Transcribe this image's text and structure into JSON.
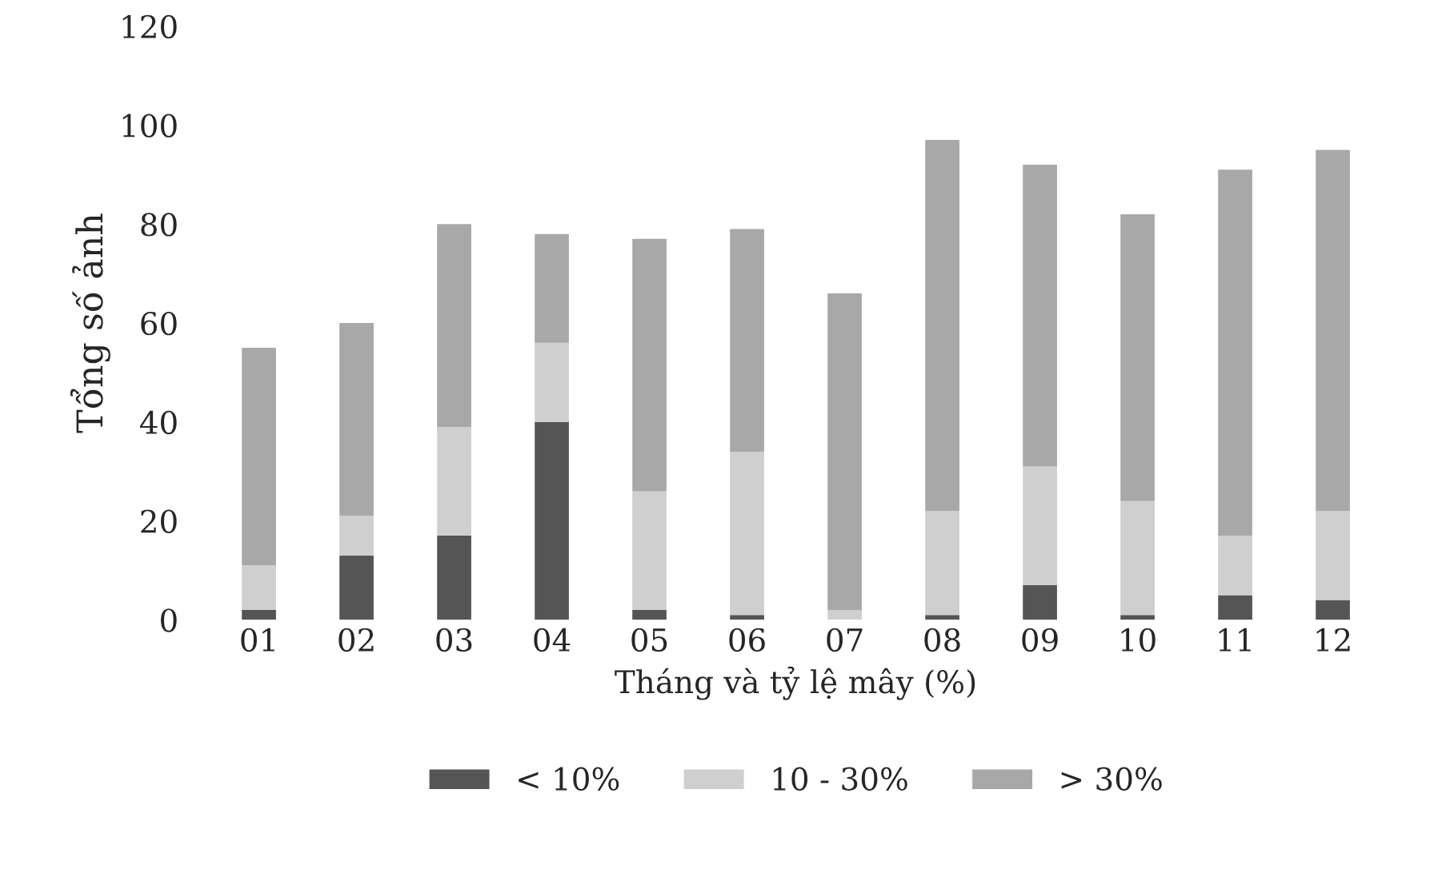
{
  "chart_data": {
    "type": "bar",
    "stacked": true,
    "xlabel": "Tháng và tỷ lệ mây (%)",
    "ylabel": "Tổng số ảnh",
    "categories": [
      "01",
      "02",
      "03",
      "04",
      "05",
      "06",
      "07",
      "08",
      "09",
      "10",
      "11",
      "12"
    ],
    "series": [
      {
        "name": "< 10%",
        "color": "#555555",
        "values": [
          2,
          13,
          17,
          40,
          2,
          1,
          0,
          1,
          7,
          1,
          5,
          4
        ]
      },
      {
        "name": "10 - 30%",
        "color": "#cfcfcf",
        "values": [
          9,
          8,
          22,
          16,
          24,
          33,
          2,
          21,
          24,
          23,
          12,
          18
        ]
      },
      {
        "name": "> 30%",
        "color": "#a8a8a8",
        "values": [
          44,
          39,
          41,
          22,
          51,
          45,
          64,
          75,
          61,
          58,
          74,
          73
        ]
      }
    ],
    "ylim": [
      0,
      120
    ],
    "yticks": [
      0,
      20,
      40,
      60,
      80,
      100,
      120
    ],
    "grid": false,
    "legend": "bottom"
  }
}
